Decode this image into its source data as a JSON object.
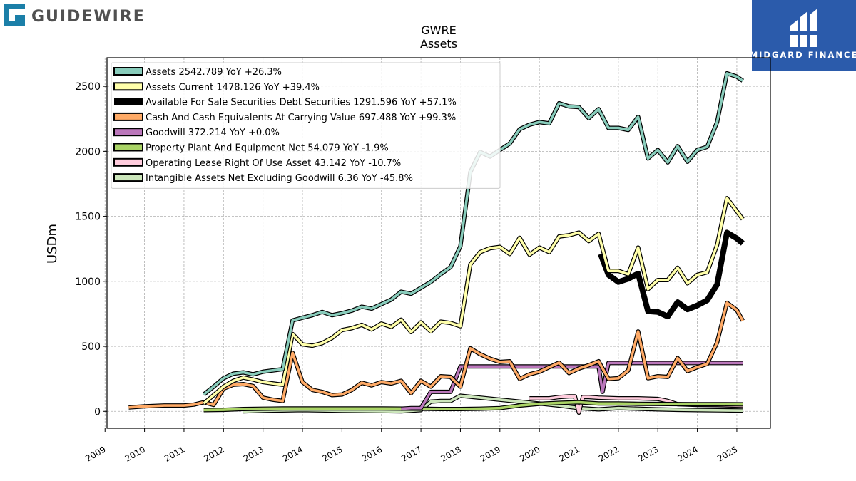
{
  "branding": {
    "company_logo_text": "GUIDEWIRE",
    "partner_logo_text": "MIDGARD FINANCE",
    "partner_bg": "#2b5bab"
  },
  "chart_data": {
    "type": "line",
    "title": "GWRE",
    "subtitle": "Assets",
    "ylabel": "USDm",
    "xlabel": "",
    "ylim": [
      -130,
      2720
    ],
    "xlim": [
      2009.05,
      2025.85
    ],
    "yticks": [
      0,
      500,
      1000,
      1500,
      2000,
      2500
    ],
    "xticks": [
      2009,
      2010,
      2011,
      2012,
      2013,
      2014,
      2015,
      2016,
      2017,
      2018,
      2019,
      2020,
      2021,
      2022,
      2023,
      2024,
      2025
    ],
    "grid": true,
    "legend_position": "top-left",
    "series": [
      {
        "name": "Assets",
        "legend_label": "Assets  2542.789 YoY +26.3%",
        "color": "#88ccbb",
        "points": [
          [
            2011.5,
            130
          ],
          [
            2011.75,
            190
          ],
          [
            2012.0,
            255
          ],
          [
            2012.25,
            290
          ],
          [
            2012.5,
            300
          ],
          [
            2012.75,
            285
          ],
          [
            2013.0,
            305
          ],
          [
            2013.25,
            315
          ],
          [
            2013.5,
            325
          ],
          [
            2013.75,
            700
          ],
          [
            2014.0,
            720
          ],
          [
            2014.25,
            740
          ],
          [
            2014.5,
            765
          ],
          [
            2014.75,
            740
          ],
          [
            2015.0,
            755
          ],
          [
            2015.25,
            775
          ],
          [
            2015.5,
            805
          ],
          [
            2015.75,
            790
          ],
          [
            2016.0,
            825
          ],
          [
            2016.25,
            860
          ],
          [
            2016.5,
            920
          ],
          [
            2016.75,
            905
          ],
          [
            2017.0,
            950
          ],
          [
            2017.25,
            995
          ],
          [
            2017.5,
            1055
          ],
          [
            2017.75,
            1110
          ],
          [
            2018.0,
            1270
          ],
          [
            2018.25,
            1840
          ],
          [
            2018.5,
            1995
          ],
          [
            2018.75,
            1960
          ],
          [
            2019.0,
            2010
          ],
          [
            2019.25,
            2060
          ],
          [
            2019.5,
            2170
          ],
          [
            2019.75,
            2205
          ],
          [
            2020.0,
            2225
          ],
          [
            2020.25,
            2215
          ],
          [
            2020.5,
            2370
          ],
          [
            2020.75,
            2345
          ],
          [
            2021.0,
            2340
          ],
          [
            2021.25,
            2255
          ],
          [
            2021.5,
            2325
          ],
          [
            2021.75,
            2180
          ],
          [
            2022.0,
            2180
          ],
          [
            2022.25,
            2165
          ],
          [
            2022.5,
            2265
          ],
          [
            2022.75,
            1945
          ],
          [
            2023.0,
            2010
          ],
          [
            2023.25,
            1915
          ],
          [
            2023.5,
            2040
          ],
          [
            2023.75,
            1920
          ],
          [
            2024.0,
            2010
          ],
          [
            2024.25,
            2035
          ],
          [
            2024.5,
            2225
          ],
          [
            2024.75,
            2600
          ],
          [
            2025.0,
            2575
          ],
          [
            2025.15,
            2543
          ]
        ]
      },
      {
        "name": "Assets Current",
        "legend_label": "Assets Current  1478.126 YoY +39.4%",
        "color": "#ffffaa",
        "points": [
          [
            2011.5,
            60
          ],
          [
            2011.75,
            125
          ],
          [
            2012.0,
            190
          ],
          [
            2012.25,
            235
          ],
          [
            2012.5,
            260
          ],
          [
            2012.75,
            245
          ],
          [
            2013.0,
            225
          ],
          [
            2013.25,
            215
          ],
          [
            2013.5,
            205
          ],
          [
            2013.75,
            595
          ],
          [
            2014.0,
            515
          ],
          [
            2014.25,
            505
          ],
          [
            2014.5,
            525
          ],
          [
            2014.75,
            565
          ],
          [
            2015.0,
            625
          ],
          [
            2015.25,
            640
          ],
          [
            2015.5,
            665
          ],
          [
            2015.75,
            630
          ],
          [
            2016.0,
            675
          ],
          [
            2016.25,
            650
          ],
          [
            2016.5,
            705
          ],
          [
            2016.75,
            610
          ],
          [
            2017.0,
            685
          ],
          [
            2017.25,
            615
          ],
          [
            2017.5,
            690
          ],
          [
            2017.75,
            680
          ],
          [
            2018.0,
            655
          ],
          [
            2018.25,
            1130
          ],
          [
            2018.5,
            1225
          ],
          [
            2018.75,
            1255
          ],
          [
            2019.0,
            1265
          ],
          [
            2019.25,
            1210
          ],
          [
            2019.5,
            1335
          ],
          [
            2019.75,
            1205
          ],
          [
            2020.0,
            1260
          ],
          [
            2020.25,
            1225
          ],
          [
            2020.5,
            1345
          ],
          [
            2020.75,
            1355
          ],
          [
            2021.0,
            1375
          ],
          [
            2021.25,
            1310
          ],
          [
            2021.5,
            1365
          ],
          [
            2021.75,
            1080
          ],
          [
            2022.0,
            1080
          ],
          [
            2022.25,
            1055
          ],
          [
            2022.5,
            1260
          ],
          [
            2022.75,
            940
          ],
          [
            2023.0,
            1010
          ],
          [
            2023.25,
            1010
          ],
          [
            2023.5,
            1105
          ],
          [
            2023.75,
            985
          ],
          [
            2024.0,
            1050
          ],
          [
            2024.25,
            1070
          ],
          [
            2024.5,
            1280
          ],
          [
            2024.75,
            1640
          ],
          [
            2025.0,
            1540
          ],
          [
            2025.15,
            1478
          ]
        ]
      },
      {
        "name": "Available For Sale Securities Debt Securities",
        "legend_label": "Available For Sale Securities Debt Securities  1291.596 YoY +57.1%",
        "color": "#000000",
        "points": [
          [
            2021.55,
            1210
          ],
          [
            2021.75,
            1050
          ],
          [
            2022.0,
            995
          ],
          [
            2022.25,
            1020
          ],
          [
            2022.5,
            1060
          ],
          [
            2022.75,
            770
          ],
          [
            2023.0,
            765
          ],
          [
            2023.25,
            730
          ],
          [
            2023.5,
            840
          ],
          [
            2023.75,
            785
          ],
          [
            2024.0,
            815
          ],
          [
            2024.25,
            855
          ],
          [
            2024.5,
            975
          ],
          [
            2024.75,
            1375
          ],
          [
            2025.0,
            1330
          ],
          [
            2025.15,
            1292
          ]
        ]
      },
      {
        "name": "Cash And Cash Equivalents At Carrying Value",
        "legend_label": "Cash And Cash Equivalents At Carrying Value  697.488 YoY +99.3%",
        "color": "#ffaa66",
        "points": [
          [
            2009.6,
            30
          ],
          [
            2010.0,
            38
          ],
          [
            2010.5,
            45
          ],
          [
            2011.0,
            45
          ],
          [
            2011.25,
            52
          ],
          [
            2011.5,
            70
          ],
          [
            2011.75,
            50
          ],
          [
            2012.0,
            175
          ],
          [
            2012.25,
            205
          ],
          [
            2012.5,
            210
          ],
          [
            2012.75,
            195
          ],
          [
            2013.0,
            105
          ],
          [
            2013.25,
            90
          ],
          [
            2013.5,
            80
          ],
          [
            2013.75,
            450
          ],
          [
            2014.0,
            225
          ],
          [
            2014.25,
            165
          ],
          [
            2014.5,
            150
          ],
          [
            2014.75,
            125
          ],
          [
            2015.0,
            130
          ],
          [
            2015.25,
            165
          ],
          [
            2015.5,
            220
          ],
          [
            2015.75,
            200
          ],
          [
            2016.0,
            225
          ],
          [
            2016.25,
            215
          ],
          [
            2016.5,
            235
          ],
          [
            2016.75,
            140
          ],
          [
            2017.0,
            235
          ],
          [
            2017.25,
            190
          ],
          [
            2017.5,
            270
          ],
          [
            2017.75,
            265
          ],
          [
            2018.0,
            190
          ],
          [
            2018.25,
            485
          ],
          [
            2018.5,
            440
          ],
          [
            2018.75,
            405
          ],
          [
            2019.0,
            380
          ],
          [
            2019.25,
            385
          ],
          [
            2019.5,
            250
          ],
          [
            2019.75,
            285
          ],
          [
            2020.0,
            305
          ],
          [
            2020.25,
            340
          ],
          [
            2020.5,
            375
          ],
          [
            2020.75,
            295
          ],
          [
            2021.0,
            330
          ],
          [
            2021.25,
            355
          ],
          [
            2021.5,
            385
          ],
          [
            2021.75,
            250
          ],
          [
            2022.0,
            255
          ],
          [
            2022.25,
            315
          ],
          [
            2022.5,
            615
          ],
          [
            2022.75,
            255
          ],
          [
            2023.0,
            270
          ],
          [
            2023.25,
            265
          ],
          [
            2023.5,
            410
          ],
          [
            2023.75,
            310
          ],
          [
            2024.0,
            340
          ],
          [
            2024.25,
            365
          ],
          [
            2024.5,
            530
          ],
          [
            2024.75,
            835
          ],
          [
            2025.0,
            780
          ],
          [
            2025.15,
            697
          ]
        ]
      },
      {
        "name": "Goodwill",
        "legend_label": "Goodwill  372.214 YoY +0.0%",
        "color": "#bb77bb",
        "points": [
          [
            2016.5,
            20
          ],
          [
            2016.75,
            25
          ],
          [
            2017.0,
            25
          ],
          [
            2017.25,
            150
          ],
          [
            2017.5,
            150
          ],
          [
            2017.75,
            150
          ],
          [
            2018.0,
            345
          ],
          [
            2018.5,
            345
          ],
          [
            2019.0,
            345
          ],
          [
            2019.5,
            345
          ],
          [
            2020.0,
            345
          ],
          [
            2020.5,
            345
          ],
          [
            2021.0,
            345
          ],
          [
            2021.5,
            345
          ],
          [
            2021.6,
            150
          ],
          [
            2021.75,
            372
          ],
          [
            2022.5,
            372
          ],
          [
            2023.0,
            372
          ],
          [
            2024.0,
            372
          ],
          [
            2025.15,
            372
          ]
        ]
      },
      {
        "name": "Property Plant And Equipment Net",
        "legend_label": "Property Plant And Equipment Net  54.079 YoY -1.9%",
        "color": "#aad466",
        "points": [
          [
            2011.5,
            10
          ],
          [
            2012.0,
            12
          ],
          [
            2012.5,
            18
          ],
          [
            2013.0,
            20
          ],
          [
            2013.5,
            22
          ],
          [
            2014.0,
            22
          ],
          [
            2015.0,
            22
          ],
          [
            2016.0,
            22
          ],
          [
            2017.0,
            20
          ],
          [
            2017.5,
            18
          ],
          [
            2018.0,
            18
          ],
          [
            2018.5,
            20
          ],
          [
            2019.0,
            25
          ],
          [
            2019.5,
            45
          ],
          [
            2020.0,
            58
          ],
          [
            2020.5,
            65
          ],
          [
            2021.0,
            70
          ],
          [
            2021.25,
            65
          ],
          [
            2021.5,
            60
          ],
          [
            2022.0,
            60
          ],
          [
            2022.5,
            58
          ],
          [
            2023.0,
            57
          ],
          [
            2023.5,
            56
          ],
          [
            2024.0,
            55
          ],
          [
            2024.5,
            55
          ],
          [
            2025.15,
            54
          ]
        ]
      },
      {
        "name": "Operating Lease Right Of Use Asset",
        "legend_label": "Operating Lease Right Of Use Asset  43.142 YoY -10.7%",
        "color": "#ffccdd",
        "points": [
          [
            2019.75,
            100
          ],
          [
            2020.0,
            100
          ],
          [
            2020.25,
            100
          ],
          [
            2020.5,
            110
          ],
          [
            2020.75,
            115
          ],
          [
            2020.9,
            115
          ],
          [
            2021.0,
            -10
          ],
          [
            2021.1,
            110
          ],
          [
            2021.25,
            110
          ],
          [
            2021.5,
            105
          ],
          [
            2022.0,
            100
          ],
          [
            2022.5,
            100
          ],
          [
            2023.0,
            95
          ],
          [
            2023.25,
            80
          ],
          [
            2023.5,
            55
          ],
          [
            2024.0,
            50
          ],
          [
            2024.5,
            48
          ],
          [
            2025.15,
            43
          ]
        ]
      },
      {
        "name": "Intangible Assets Net Excluding Goodwill",
        "legend_label": "Intangible Assets Net Excluding Goodwill  6.36 YoY -45.8%",
        "color": "#cce6bb",
        "points": [
          [
            2012.5,
            0
          ],
          [
            2013.0,
            5
          ],
          [
            2014.0,
            10
          ],
          [
            2015.0,
            5
          ],
          [
            2016.0,
            2
          ],
          [
            2016.5,
            0
          ],
          [
            2017.0,
            10
          ],
          [
            2017.25,
            75
          ],
          [
            2017.5,
            80
          ],
          [
            2017.75,
            80
          ],
          [
            2018.0,
            120
          ],
          [
            2018.5,
            105
          ],
          [
            2019.0,
            90
          ],
          [
            2019.5,
            75
          ],
          [
            2020.0,
            60
          ],
          [
            2020.5,
            45
          ],
          [
            2021.0,
            25
          ],
          [
            2021.5,
            15
          ],
          [
            2022.0,
            25
          ],
          [
            2022.5,
            20
          ],
          [
            2023.0,
            15
          ],
          [
            2023.5,
            12
          ],
          [
            2024.0,
            10
          ],
          [
            2024.5,
            8
          ],
          [
            2025.15,
            6
          ]
        ]
      }
    ]
  }
}
